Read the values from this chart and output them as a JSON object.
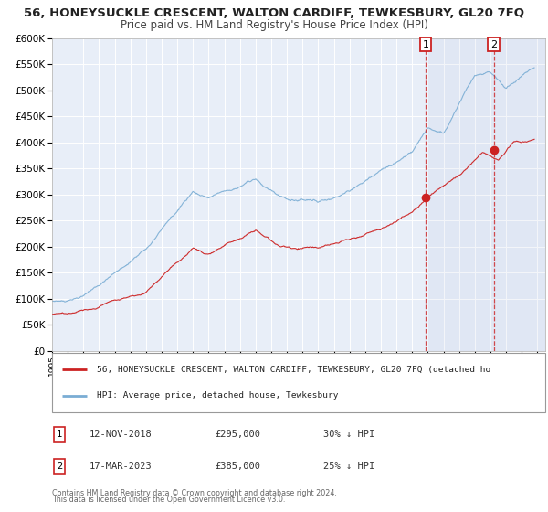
{
  "title": "56, HONEYSUCKLE CRESCENT, WALTON CARDIFF, TEWKESBURY, GL20 7FQ",
  "subtitle": "Price paid vs. HM Land Registry's House Price Index (HPI)",
  "ylim": [
    0,
    600000
  ],
  "yticks": [
    0,
    50000,
    100000,
    150000,
    200000,
    250000,
    300000,
    350000,
    400000,
    450000,
    500000,
    550000,
    600000
  ],
  "xlim_start": 1995.0,
  "xlim_end": 2026.5,
  "marker1_x": 2018.87,
  "marker1_y": 295000,
  "marker2_x": 2023.21,
  "marker2_y": 385000,
  "sale1_date": "12-NOV-2018",
  "sale1_price": "£295,000",
  "sale1_hpi": "30% ↓ HPI",
  "sale2_date": "17-MAR-2023",
  "sale2_price": "£385,000",
  "sale2_hpi": "25% ↓ HPI",
  "legend_line1": "56, HONEYSUCKLE CRESCENT, WALTON CARDIFF, TEWKESBURY, GL20 7FQ (detached ho",
  "legend_line2": "HPI: Average price, detached house, Tewkesbury",
  "footer1": "Contains HM Land Registry data © Crown copyright and database right 2024.",
  "footer2": "This data is licensed under the Open Government Licence v3.0.",
  "line_color_red": "#cc2222",
  "line_color_blue": "#7aadd4",
  "background_color": "#e8eef8",
  "grid_color": "#ffffff",
  "title_fontsize": 9.5,
  "subtitle_fontsize": 8.5
}
